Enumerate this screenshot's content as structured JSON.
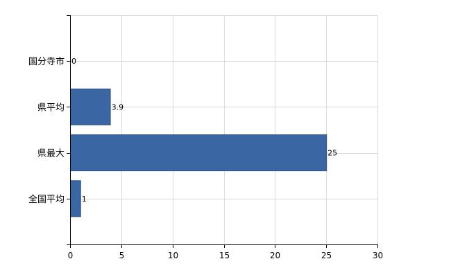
{
  "chart_data": {
    "type": "bar",
    "orientation": "horizontal",
    "categories": [
      "国分寺市",
      "県平均",
      "県最大",
      "全国平均"
    ],
    "values": [
      0,
      3.9,
      25,
      1
    ],
    "data_labels": [
      "0",
      "3.9",
      "25",
      "1"
    ],
    "title": "",
    "xlabel": "",
    "ylabel": "",
    "xlim": [
      0,
      30
    ],
    "x_ticks": [
      0,
      5,
      10,
      15,
      20,
      25,
      30
    ],
    "x_tick_labels": [
      "0",
      "5",
      "10",
      "15",
      "20",
      "25",
      "30"
    ],
    "grid": true,
    "legend": "none",
    "bar_color": "#3a66a3",
    "bar_border_color": "#2e5486",
    "grid_color": "#d9d9d9"
  }
}
